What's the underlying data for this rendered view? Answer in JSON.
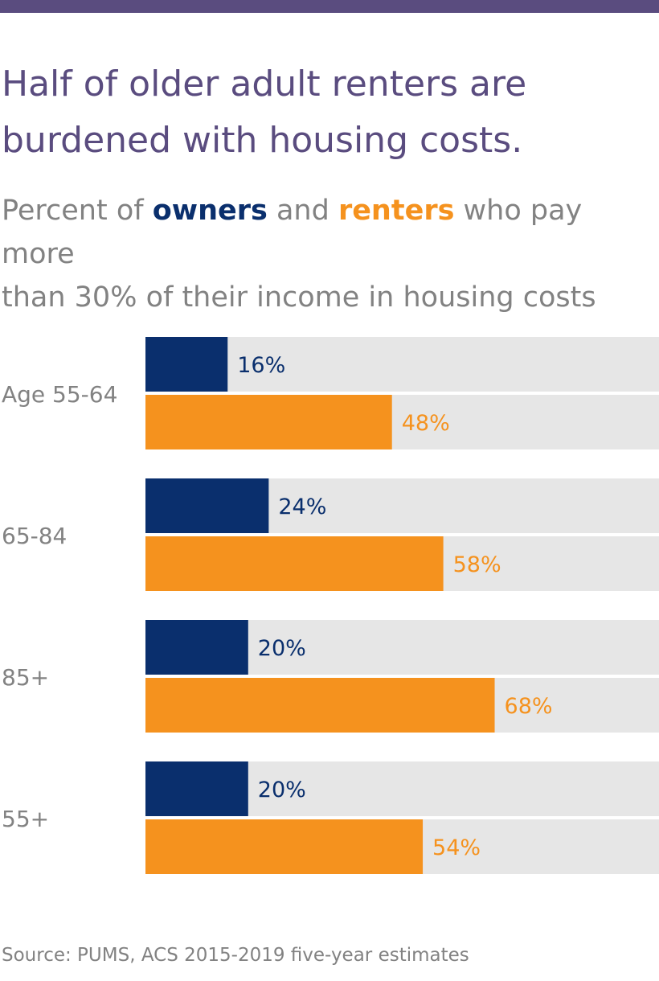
{
  "header": {
    "title_line1": "Half of older adult renters are",
    "title_line2": "burdened with housing costs.",
    "subtitle_prefix": "Percent of ",
    "subtitle_owners": "owners",
    "subtitle_and": " and ",
    "subtitle_renters": "renters",
    "subtitle_suffix_line1": " who pay more",
    "subtitle_line2": "than 30% of their income in housing costs"
  },
  "colors": {
    "owners": "#0a2f6d",
    "renters": "#f5921e",
    "track": "#e6e6e6",
    "label": "#828282",
    "title": "#5a4c7f"
  },
  "chart_data": {
    "type": "bar",
    "orientation": "horizontal",
    "categories": [
      "Age 55-64",
      "65-84",
      "85+",
      "55+"
    ],
    "series": [
      {
        "name": "owners",
        "values": [
          16,
          24,
          20,
          20
        ],
        "labels": [
          "16%",
          "24%",
          "20%",
          "20%"
        ]
      },
      {
        "name": "renters",
        "values": [
          48,
          58,
          68,
          54
        ],
        "labels": [
          "48%",
          "58%",
          "68%",
          "54%"
        ]
      }
    ],
    "xlim": [
      0,
      100
    ],
    "grid": false
  },
  "footer": {
    "source": "Source: PUMS, ACS 2015-2019 five-year estimates"
  }
}
